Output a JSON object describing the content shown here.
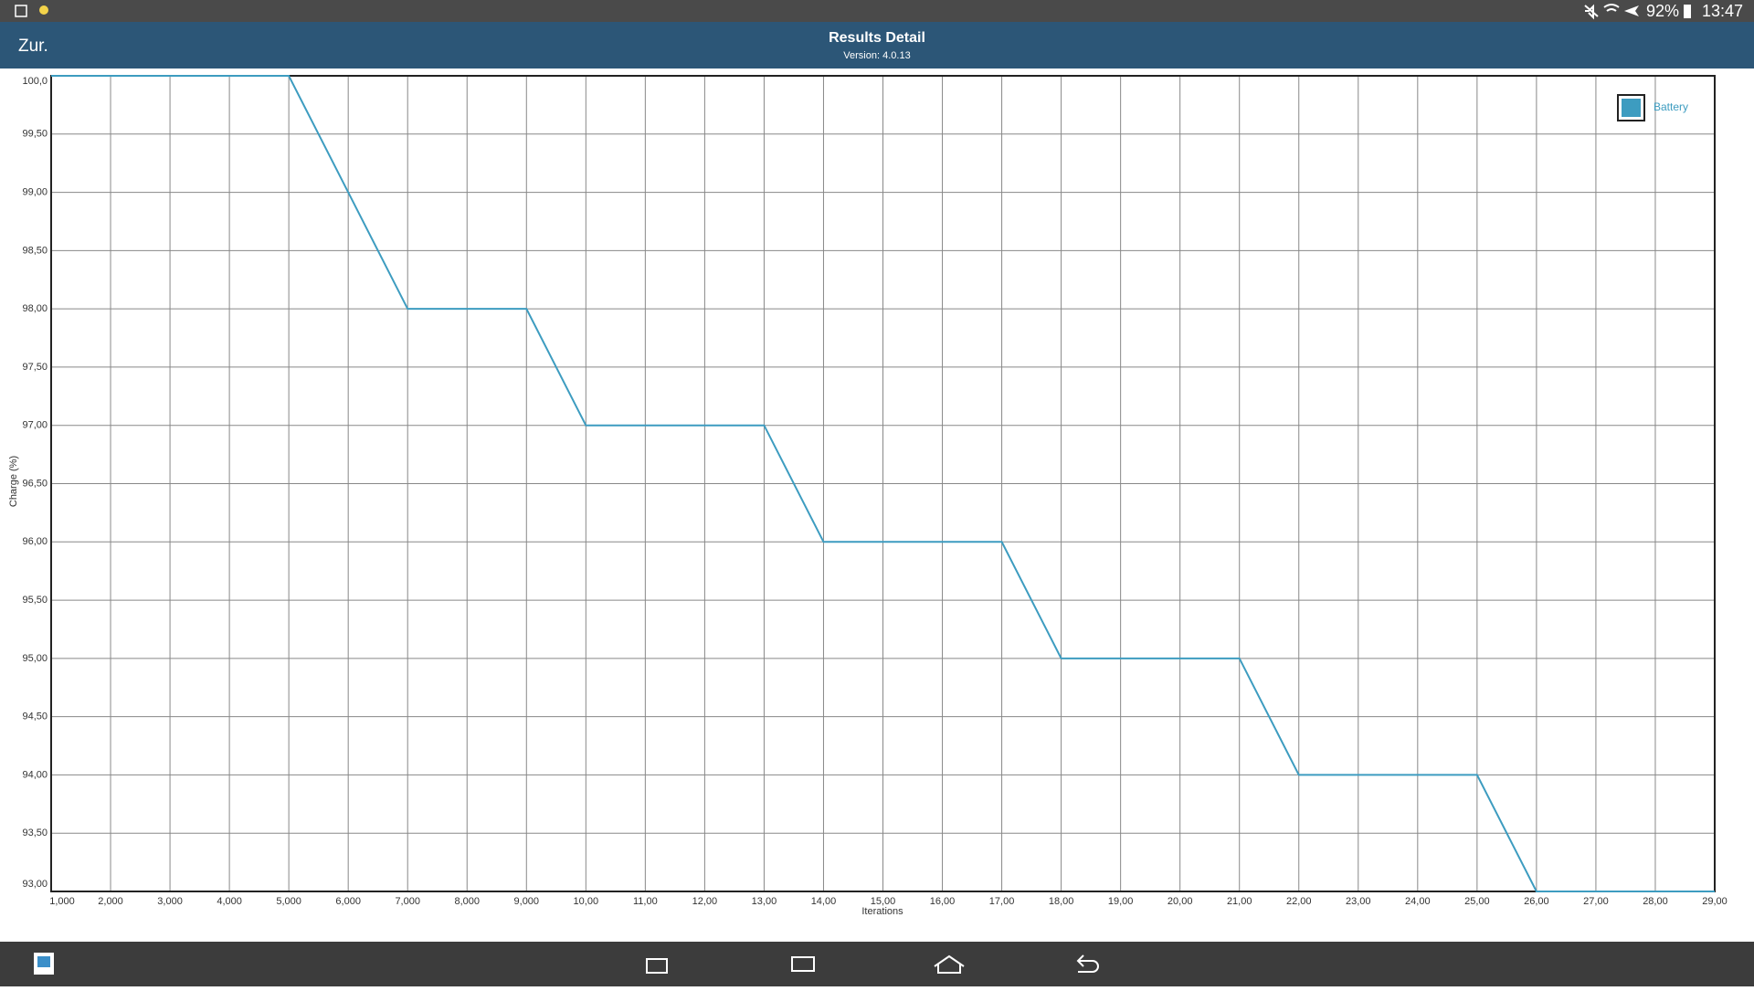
{
  "status_bar": {
    "battery": "92%",
    "time": "13:47"
  },
  "header": {
    "back": "Zur.",
    "title": "Results Detail",
    "subtitle": "Version: 4.0.13"
  },
  "chart_data": {
    "type": "line",
    "x_label": "Iterations",
    "y_label": "Charge (%)",
    "x": [
      1,
      2,
      3,
      4,
      5,
      6,
      7,
      8,
      9,
      10,
      11,
      12,
      13,
      14,
      15,
      16,
      17,
      18,
      19,
      20,
      21,
      22,
      23,
      24,
      25,
      26,
      27,
      28,
      29
    ],
    "series": [
      {
        "name": "Battery",
        "color": "#3d9cc0",
        "values": [
          100,
          100,
          100,
          100,
          100,
          99,
          98,
          98,
          98,
          97,
          97,
          97,
          97,
          96,
          96,
          96,
          96,
          95,
          95,
          95,
          95,
          94,
          94,
          94,
          94,
          93,
          93,
          93,
          93
        ]
      }
    ],
    "xlim": [
      1,
      29
    ],
    "xticks": [
      {
        "value": 1,
        "label": "1,000"
      },
      {
        "value": 2,
        "label": "2,000"
      },
      {
        "value": 3,
        "label": "3,000"
      },
      {
        "value": 4,
        "label": "4,000"
      },
      {
        "value": 5,
        "label": "5,000"
      },
      {
        "value": 6,
        "label": "6,000"
      },
      {
        "value": 7,
        "label": "7,000"
      },
      {
        "value": 8,
        "label": "8,000"
      },
      {
        "value": 9,
        "label": "9,000"
      },
      {
        "value": 10,
        "label": "10,00"
      },
      {
        "value": 11,
        "label": "11,00"
      },
      {
        "value": 12,
        "label": "12,00"
      },
      {
        "value": 13,
        "label": "13,00"
      },
      {
        "value": 14,
        "label": "14,00"
      },
      {
        "value": 15,
        "label": "15,00"
      },
      {
        "value": 16,
        "label": "16,00"
      },
      {
        "value": 17,
        "label": "17,00"
      },
      {
        "value": 18,
        "label": "18,00"
      },
      {
        "value": 19,
        "label": "19,00"
      },
      {
        "value": 20,
        "label": "20,00"
      },
      {
        "value": 21,
        "label": "21,00"
      },
      {
        "value": 22,
        "label": "22,00"
      },
      {
        "value": 23,
        "label": "23,00"
      },
      {
        "value": 24,
        "label": "24,00"
      },
      {
        "value": 25,
        "label": "25,00"
      },
      {
        "value": 26,
        "label": "26,00"
      },
      {
        "value": 27,
        "label": "27,00"
      },
      {
        "value": 28,
        "label": "28,00"
      },
      {
        "value": 29,
        "label": "29,00"
      }
    ],
    "ylim": [
      93,
      100
    ],
    "yticks": [
      {
        "value": 93,
        "label": "93,00"
      },
      {
        "value": 93.5,
        "label": "93,50"
      },
      {
        "value": 94,
        "label": "94,00"
      },
      {
        "value": 94.5,
        "label": "94,50"
      },
      {
        "value": 95,
        "label": "95,00"
      },
      {
        "value": 95.5,
        "label": "95,50"
      },
      {
        "value": 96,
        "label": "96,00"
      },
      {
        "value": 96.5,
        "label": "96,50"
      },
      {
        "value": 97,
        "label": "97,00"
      },
      {
        "value": 97.5,
        "label": "97,50"
      },
      {
        "value": 98,
        "label": "98,00"
      },
      {
        "value": 98.5,
        "label": "98,50"
      },
      {
        "value": 99,
        "label": "99,00"
      },
      {
        "value": 99.5,
        "label": "99,50"
      },
      {
        "value": 100,
        "label": "100,0"
      }
    ],
    "grid": true,
    "legend": "top-right"
  }
}
